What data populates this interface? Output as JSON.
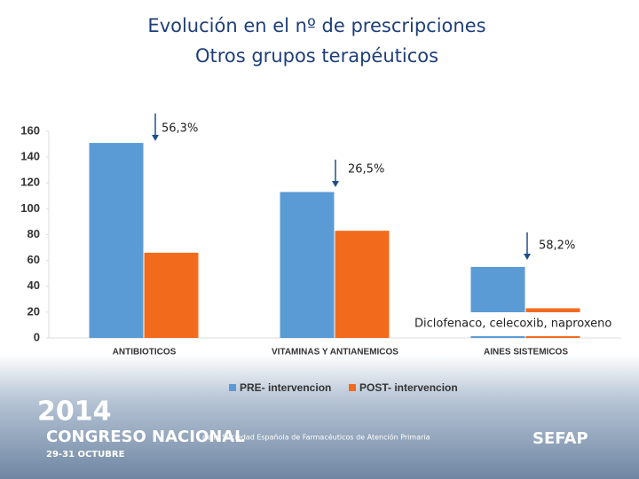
{
  "chart_data": {
    "type": "bar",
    "title": [
      "Evolución en el nº de prescripciones",
      "Otros grupos terapéuticos"
    ],
    "categories": [
      "ANTIBIOTICOS",
      "VITAMINAS Y ANTIANEMICOS",
      "AINES  SISTEMICOS"
    ],
    "series": [
      {
        "name": "PRE- intervencion",
        "color": "#5b9bd5",
        "values": [
          151,
          113,
          55
        ]
      },
      {
        "name": "POST- intervencion",
        "color": "#f26b1d",
        "values": [
          66,
          83,
          23
        ]
      }
    ],
    "ylim": [
      0,
      160
    ],
    "yticks": [
      0,
      20,
      40,
      60,
      80,
      100,
      120,
      140,
      160
    ],
    "grid": false,
    "annotations": [
      "56,3%",
      "26,5%",
      "58,2%",
      "Diclofenaco, celecoxib, naproxeno"
    ]
  },
  "footer": {
    "year": "2014",
    "congress": "CONGRESO NACIONAL",
    "society": "de la Sociedad Española de Farmacéuticos de Atención Primaria",
    "dates": "29-31 OCTUBRE",
    "logo": "SEFAP"
  }
}
